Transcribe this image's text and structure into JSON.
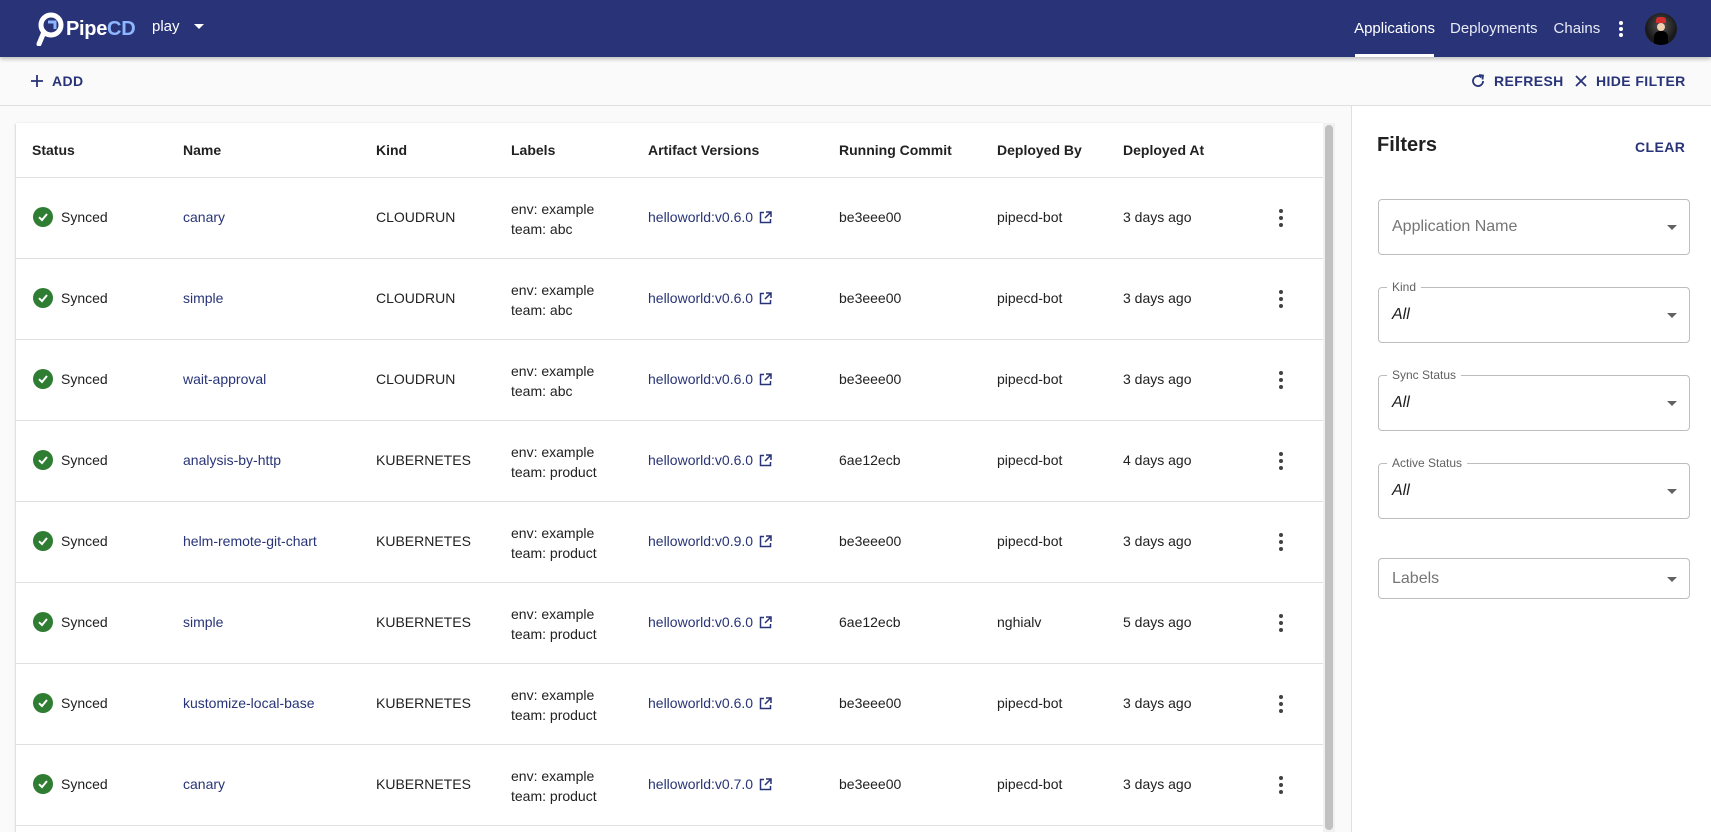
{
  "app": {
    "logo_text_main": "Pipe",
    "logo_text_accent": "CD",
    "project": "play"
  },
  "nav": {
    "applications": "Applications",
    "deployments": "Deployments",
    "chains": "Chains"
  },
  "toolbar": {
    "add_label": "ADD",
    "refresh_label": "REFRESH",
    "hide_filter_label": "HIDE FILTER"
  },
  "table": {
    "headers": {
      "status": "Status",
      "name": "Name",
      "kind": "Kind",
      "labels": "Labels",
      "artifact_versions": "Artifact Versions",
      "running_commit": "Running Commit",
      "deployed_by": "Deployed By",
      "deployed_at": "Deployed At"
    },
    "rows": [
      {
        "status": "Synced",
        "name": "canary",
        "kind": "CLOUDRUN",
        "label1": "env: example",
        "label2": "team: abc",
        "artifact": "helloworld:v0.6.0",
        "commit": "be3eee00",
        "deployed_by": "pipecd-bot",
        "deployed_at": "3 days ago"
      },
      {
        "status": "Synced",
        "name": "simple",
        "kind": "CLOUDRUN",
        "label1": "env: example",
        "label2": "team: abc",
        "artifact": "helloworld:v0.6.0",
        "commit": "be3eee00",
        "deployed_by": "pipecd-bot",
        "deployed_at": "3 days ago"
      },
      {
        "status": "Synced",
        "name": "wait-approval",
        "kind": "CLOUDRUN",
        "label1": "env: example",
        "label2": "team: abc",
        "artifact": "helloworld:v0.6.0",
        "commit": "be3eee00",
        "deployed_by": "pipecd-bot",
        "deployed_at": "3 days ago"
      },
      {
        "status": "Synced",
        "name": "analysis-by-http",
        "kind": "KUBERNETES",
        "label1": "env: example",
        "label2": "team: product",
        "artifact": "helloworld:v0.6.0",
        "commit": "6ae12ecb",
        "deployed_by": "pipecd-bot",
        "deployed_at": "4 days ago"
      },
      {
        "status": "Synced",
        "name": "helm-remote-git-chart",
        "kind": "KUBERNETES",
        "label1": "env: example",
        "label2": "team: product",
        "artifact": "helloworld:v0.9.0",
        "commit": "be3eee00",
        "deployed_by": "pipecd-bot",
        "deployed_at": "3 days ago"
      },
      {
        "status": "Synced",
        "name": "simple",
        "kind": "KUBERNETES",
        "label1": "env: example",
        "label2": "team: product",
        "artifact": "helloworld:v0.6.0",
        "commit": "6ae12ecb",
        "deployed_by": "nghialv",
        "deployed_at": "5 days ago"
      },
      {
        "status": "Synced",
        "name": "kustomize-local-base",
        "kind": "KUBERNETES",
        "label1": "env: example",
        "label2": "team: product",
        "artifact": "helloworld:v0.6.0",
        "commit": "be3eee00",
        "deployed_by": "pipecd-bot",
        "deployed_at": "3 days ago"
      },
      {
        "status": "Synced",
        "name": "canary",
        "kind": "KUBERNETES",
        "label1": "env: example",
        "label2": "team: product",
        "artifact": "helloworld:v0.7.0",
        "commit": "be3eee00",
        "deployed_by": "pipecd-bot",
        "deployed_at": "3 days ago"
      }
    ]
  },
  "filters": {
    "title": "Filters",
    "clear_label": "CLEAR",
    "application_name_placeholder": "Application Name",
    "kind_label": "Kind",
    "kind_value": "All",
    "sync_status_label": "Sync Status",
    "sync_status_value": "All",
    "active_status_label": "Active Status",
    "active_status_value": "All",
    "labels_placeholder": "Labels"
  },
  "colors": {
    "appbar": "#283477",
    "link": "#283477",
    "synced": "#2e7d32"
  }
}
